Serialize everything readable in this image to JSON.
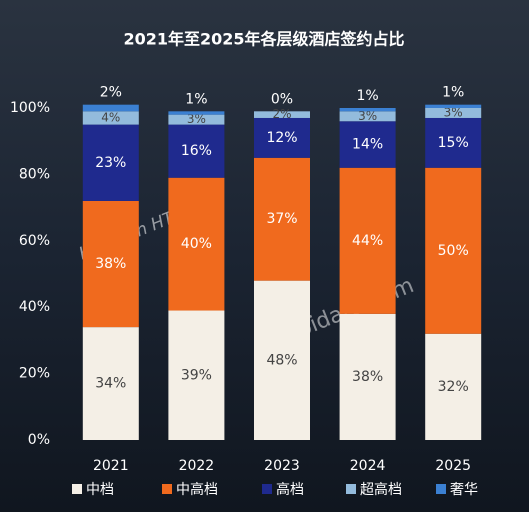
{
  "chart_data": {
    "type": "stacked_bar",
    "title": "2021年至2025年各层级酒店签约占比",
    "categories": [
      "2021",
      "2022",
      "2023",
      "2024",
      "2025"
    ],
    "series": [
      {
        "name": "中档",
        "color": "#f4efe6",
        "values": [
          34,
          39,
          48,
          38,
          32
        ],
        "value_labels": [
          "34%",
          "39%",
          "48%",
          "38%",
          "32%"
        ]
      },
      {
        "name": "中高档",
        "color": "#f06a1e",
        "values": [
          38,
          40,
          37,
          44,
          50
        ],
        "value_labels": [
          "38%",
          "40%",
          "37%",
          "44%",
          "50%"
        ]
      },
      {
        "name": "高档",
        "color": "#1f2a8e",
        "values": [
          23,
          16,
          12,
          14,
          15
        ],
        "value_labels": [
          "23%",
          "16%",
          "12%",
          "14%",
          "15%"
        ]
      },
      {
        "name": "超高档",
        "color": "#93bbdc",
        "values": [
          4,
          3,
          2,
          3,
          3
        ],
        "value_labels": [
          "4%",
          "3%",
          "2%",
          "3%",
          "3%"
        ]
      },
      {
        "name": "奢华",
        "color": "#3b80d2",
        "values": [
          2,
          1,
          0,
          1,
          1
        ],
        "value_labels": [
          "2%",
          "1%",
          "0%",
          "1%",
          "1%"
        ]
      }
    ],
    "ylim": [
      0,
      100
    ],
    "yticks": [
      {
        "value": 0,
        "label": "0%"
      },
      {
        "value": 20,
        "label": "20%"
      },
      {
        "value": 40,
        "label": "40%"
      },
      {
        "value": 60,
        "label": "60%"
      },
      {
        "value": 80,
        "label": "80%"
      },
      {
        "value": 100,
        "label": "100%"
      }
    ],
    "legend": "bottom",
    "watermarks": [
      "Horwath HTL 浩華",
      "hotbidata.com"
    ]
  }
}
